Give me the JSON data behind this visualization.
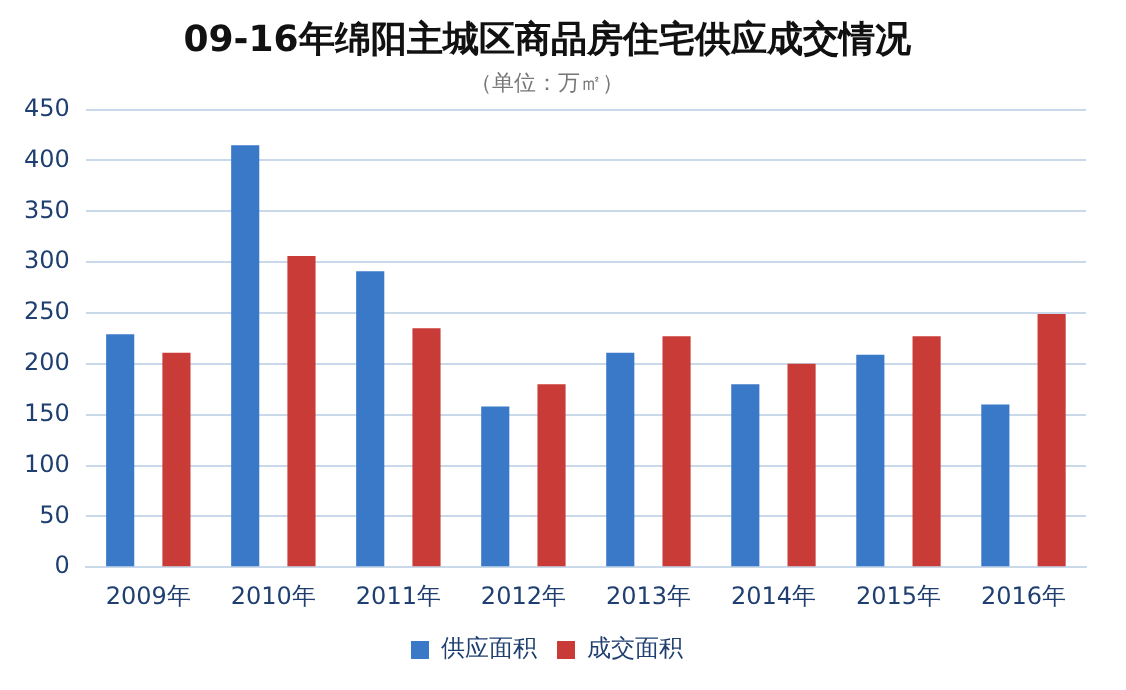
{
  "chart_data": {
    "type": "bar",
    "title": "09-16年绵阳主城区商品房住宅供应成交情况",
    "subtitle": "（单位：万㎡）",
    "categories": [
      "2009年",
      "2010年",
      "2011年",
      "2012年",
      "2013年",
      "2014年",
      "2015年",
      "2016年"
    ],
    "series": [
      {
        "name": "供应面积",
        "color": "#3a78c8",
        "values": [
          229,
          415,
          291,
          158,
          211,
          180,
          209,
          160
        ]
      },
      {
        "name": "成交面积",
        "color": "#c83b37",
        "values": [
          211,
          306,
          235,
          180,
          227,
          200,
          227,
          249
        ]
      }
    ],
    "ylim": [
      0,
      450
    ],
    "yticks": [
      0,
      50,
      100,
      150,
      200,
      250,
      300,
      350,
      400,
      450
    ],
    "grid": "y",
    "legend": "bottom"
  }
}
